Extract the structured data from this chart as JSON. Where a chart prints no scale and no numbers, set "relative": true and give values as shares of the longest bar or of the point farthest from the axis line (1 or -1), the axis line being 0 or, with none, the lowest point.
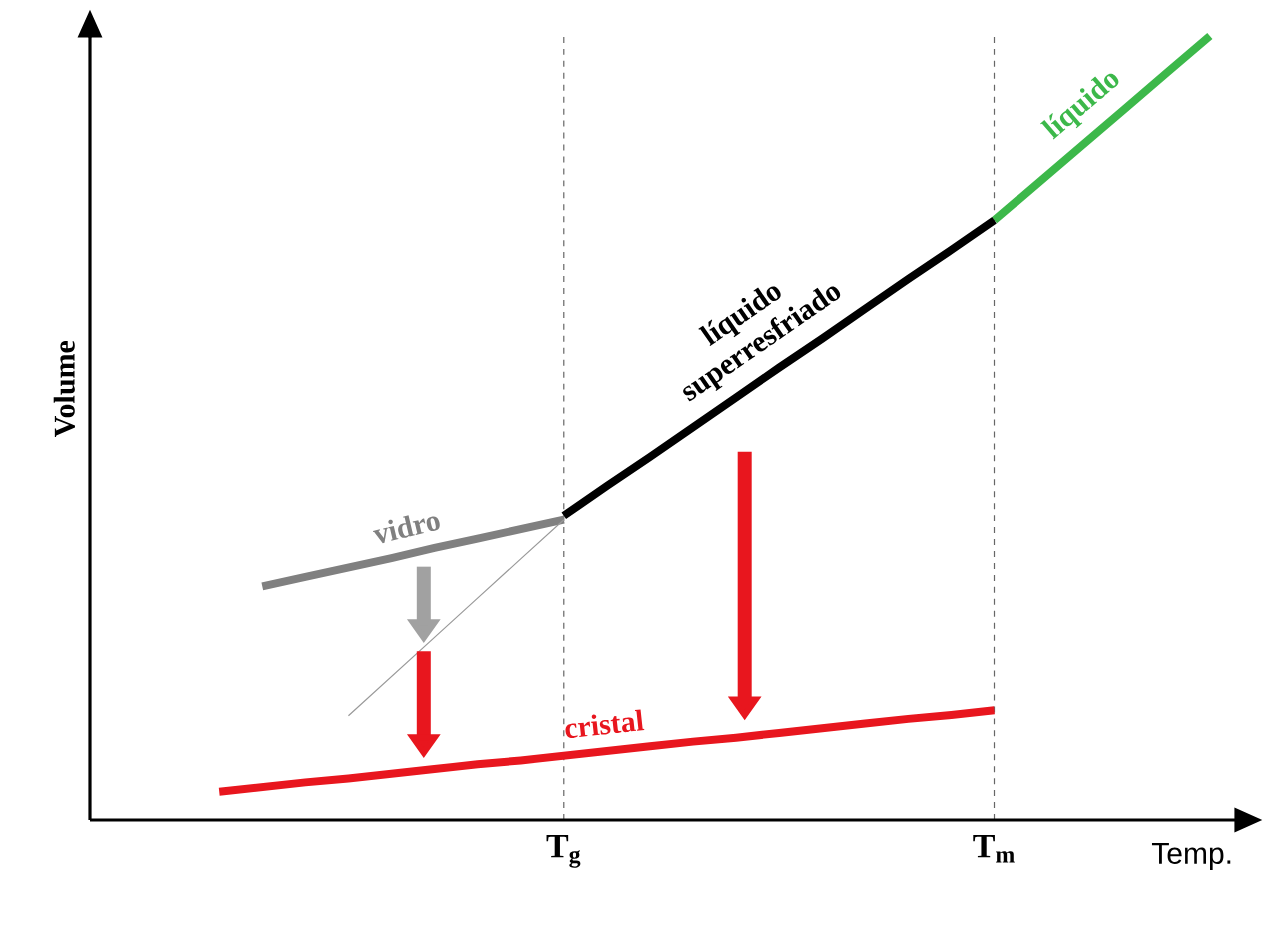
{
  "chart_data": {
    "type": "line",
    "relative": true,
    "xlabel": "Temp.",
    "ylabel": "Volume",
    "categories": [
      null,
      null,
      null,
      null,
      null,
      null,
      null,
      null,
      null,
      null,
      null,
      "T$_{g}$",
      null,
      null,
      null,
      null,
      null,
      null,
      null,
      null,
      null,
      "T$_{m}$",
      null,
      null,
      null,
      null,
      null
    ],
    "series": [
      {
        "name": "líquido",
        "color": "#3cb84a",
        "values": [
          null,
          null,
          null,
          null,
          null,
          null,
          null,
          null,
          null,
          null,
          null,
          null,
          null,
          null,
          null,
          null,
          null,
          null,
          null,
          null,
          null,
          0.765,
          0.812,
          0.859,
          0.906,
          0.953,
          1.0
        ]
      },
      {
        "name": "líquido superresfriado",
        "color": "#000000",
        "values": [
          null,
          null,
          null,
          null,
          null,
          null,
          null,
          null,
          null,
          null,
          null,
          0.388,
          0.426,
          0.463,
          0.501,
          0.539,
          0.577,
          0.614,
          0.652,
          0.69,
          0.727,
          0.765,
          null,
          null,
          null,
          null,
          null
        ]
      },
      {
        "name": "vidro",
        "color": "#808080",
        "values": [
          null,
          null,
          null,
          null,
          0.298,
          0.31,
          0.322,
          0.334,
          0.347,
          0.359,
          0.371,
          0.383,
          null,
          null,
          null,
          null,
          null,
          null,
          null,
          null,
          null,
          null,
          null,
          null,
          null,
          null,
          null
        ]
      },
      {
        "color": "#999999",
        "values": [
          null,
          null,
          null,
          null,
          null,
          null,
          0.133,
          0.183,
          0.233,
          0.283,
          0.333,
          0.383,
          null,
          null,
          null,
          null,
          null,
          null,
          null,
          null,
          null,
          null,
          null,
          null,
          null,
          null,
          null
        ]
      },
      {
        "name": "cristal",
        "color": "#e8161e",
        "values": [
          null,
          null,
          null,
          0.036,
          0.042,
          0.048,
          0.053,
          0.059,
          0.065,
          0.071,
          0.076,
          0.082,
          0.088,
          0.094,
          0.1,
          0.105,
          0.111,
          0.117,
          0.123,
          0.129,
          0.134,
          0.14,
          null,
          null,
          null,
          null,
          null
        ]
      }
    ],
    "grid": "x",
    "marker": "none",
    "line_style": "solid"
  }
}
